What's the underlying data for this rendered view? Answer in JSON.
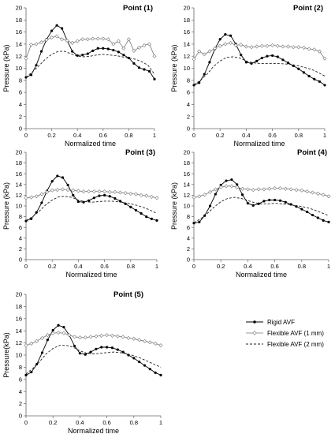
{
  "chart_data": [
    {
      "type": "line",
      "title": "Point (1)",
      "xlabel": "Normalized time",
      "ylabel": "Pressure (kPa)",
      "xlim": [
        0,
        1
      ],
      "ylim": [
        0,
        20
      ],
      "xticks": [
        "0",
        "0.2",
        "0.4",
        "0.6",
        "0.8",
        "1"
      ],
      "yticks": [
        "0",
        "2",
        "4",
        "6",
        "8",
        "10",
        "12",
        "14",
        "16",
        "18",
        "20"
      ],
      "grid": false,
      "legend": false,
      "series": [
        {
          "name": "Rigid AVF",
          "marker": "filled-circle",
          "dash": "solid",
          "x": [
            0,
            0.04,
            0.08,
            0.12,
            0.16,
            0.2,
            0.24,
            0.28,
            0.32,
            0.36,
            0.4,
            0.44,
            0.48,
            0.52,
            0.56,
            0.6,
            0.64,
            0.68,
            0.72,
            0.76,
            0.8,
            0.84,
            0.88,
            0.92,
            0.96,
            1
          ],
          "y": [
            8.5,
            8.9,
            10.5,
            12.8,
            14.8,
            16.2,
            17.1,
            16.6,
            14.6,
            12.8,
            12.1,
            12.2,
            12.4,
            12.9,
            13.3,
            13.3,
            13.2,
            13.0,
            12.7,
            12.2,
            11.7,
            10.8,
            10.1,
            9.8,
            9.5,
            8.2
          ]
        },
        {
          "name": "Flexible AVF (1 mm)",
          "marker": "open-diamond",
          "dash": "solid",
          "x": [
            0,
            0.04,
            0.08,
            0.12,
            0.16,
            0.2,
            0.24,
            0.28,
            0.32,
            0.36,
            0.4,
            0.44,
            0.48,
            0.52,
            0.56,
            0.6,
            0.64,
            0.68,
            0.72,
            0.76,
            0.8,
            0.84,
            0.88,
            0.92,
            0.96,
            1
          ],
          "y": [
            11.6,
            13.9,
            14.0,
            14.3,
            14.7,
            15.1,
            15.3,
            14.8,
            14.6,
            14.2,
            14.5,
            14.8,
            14.8,
            14.9,
            14.9,
            14.9,
            14.8,
            14.0,
            14.5,
            13.3,
            14.8,
            12.9,
            13.4,
            13.8,
            14.0,
            12.0
          ]
        },
        {
          "name": "Flexible AVF (2 mm)",
          "marker": "none",
          "dash": "dashed",
          "x": [
            0,
            0.05,
            0.1,
            0.15,
            0.2,
            0.25,
            0.3,
            0.35,
            0.4,
            0.45,
            0.5,
            0.55,
            0.6,
            0.65,
            0.7,
            0.75,
            0.8,
            0.85,
            0.9,
            0.95,
            1
          ],
          "y": [
            8.5,
            9.4,
            10.4,
            11.5,
            12.3,
            12.8,
            12.8,
            12.4,
            12.0,
            11.9,
            12.0,
            12.2,
            12.3,
            12.2,
            12.1,
            11.9,
            11.7,
            11.5,
            11.1,
            10.5,
            9.0
          ]
        }
      ]
    },
    {
      "type": "line",
      "title": "Point (2)",
      "xlabel": "Normalized time",
      "ylabel": "Pressure (kPa)",
      "xlim": [
        0,
        1
      ],
      "ylim": [
        0,
        20
      ],
      "xticks": [
        "0",
        "0.2",
        "0.4",
        "0.6",
        "0.8",
        "1"
      ],
      "yticks": [
        "0",
        "2",
        "4",
        "6",
        "8",
        "10",
        "12",
        "14",
        "16",
        "18",
        "20"
      ],
      "grid": false,
      "legend": false,
      "series": [
        {
          "name": "Rigid AVF",
          "marker": "filled-circle",
          "dash": "solid",
          "x": [
            0,
            0.04,
            0.08,
            0.12,
            0.16,
            0.2,
            0.24,
            0.28,
            0.32,
            0.36,
            0.4,
            0.44,
            0.48,
            0.52,
            0.56,
            0.6,
            0.64,
            0.68,
            0.72,
            0.76,
            0.8,
            0.84,
            0.88,
            0.92,
            0.96,
            1
          ],
          "y": [
            7.2,
            7.6,
            9.0,
            11.0,
            13.2,
            14.8,
            15.6,
            15.4,
            14.0,
            12.2,
            11.0,
            10.8,
            11.2,
            11.7,
            12.0,
            12.1,
            11.9,
            11.4,
            10.9,
            10.4,
            9.9,
            9.3,
            8.7,
            8.2,
            7.8,
            7.2
          ]
        },
        {
          "name": "Flexible AVF (1 mm)",
          "marker": "open-diamond",
          "dash": "solid",
          "x": [
            0,
            0.04,
            0.08,
            0.12,
            0.16,
            0.2,
            0.24,
            0.28,
            0.32,
            0.36,
            0.4,
            0.44,
            0.48,
            0.52,
            0.56,
            0.6,
            0.64,
            0.68,
            0.72,
            0.76,
            0.8,
            0.84,
            0.88,
            0.92,
            0.96,
            1
          ],
          "y": [
            11.5,
            12.8,
            12.3,
            12.8,
            13.3,
            13.7,
            14.0,
            14.2,
            13.8,
            13.9,
            13.6,
            13.5,
            13.6,
            13.7,
            13.7,
            13.8,
            13.7,
            13.6,
            13.6,
            13.5,
            13.5,
            13.4,
            13.2,
            13.1,
            12.8,
            11.6
          ]
        },
        {
          "name": "Flexible AVF (2 mm)",
          "marker": "none",
          "dash": "dashed",
          "x": [
            0,
            0.05,
            0.1,
            0.15,
            0.2,
            0.25,
            0.3,
            0.35,
            0.4,
            0.45,
            0.5,
            0.55,
            0.6,
            0.65,
            0.7,
            0.75,
            0.8,
            0.85,
            0.9,
            0.95,
            1
          ],
          "y": [
            7.3,
            8.0,
            9.0,
            10.3,
            11.2,
            11.8,
            11.9,
            11.7,
            11.2,
            10.9,
            10.8,
            10.8,
            10.8,
            10.8,
            10.7,
            10.6,
            10.4,
            10.1,
            9.8,
            9.3,
            8.7
          ]
        }
      ]
    },
    {
      "type": "line",
      "title": "Point (3)",
      "xlabel": "Normalized time",
      "ylabel": "Pressure (kPa)",
      "xlim": [
        0,
        1
      ],
      "ylim": [
        0,
        20
      ],
      "xticks": [
        "0",
        "0.2",
        "0.4",
        "0.6",
        "0.8",
        "1"
      ],
      "yticks": [
        "0",
        "2",
        "4",
        "6",
        "8",
        "10",
        "12",
        "14",
        "16",
        "18",
        "20"
      ],
      "grid": false,
      "legend": false,
      "series": [
        {
          "name": "Rigid AVF",
          "marker": "filled-circle",
          "dash": "solid",
          "x": [
            0,
            0.04,
            0.08,
            0.12,
            0.16,
            0.2,
            0.24,
            0.28,
            0.32,
            0.36,
            0.4,
            0.44,
            0.48,
            0.52,
            0.56,
            0.6,
            0.64,
            0.68,
            0.72,
            0.76,
            0.8,
            0.84,
            0.88,
            0.92,
            0.96,
            1
          ],
          "y": [
            7.2,
            7.6,
            8.8,
            10.6,
            12.8,
            14.6,
            15.6,
            15.3,
            13.9,
            12.0,
            10.8,
            10.7,
            11.0,
            11.5,
            11.9,
            12.0,
            11.8,
            11.4,
            10.9,
            10.4,
            9.8,
            9.2,
            8.6,
            8.0,
            7.6,
            7.3
          ]
        },
        {
          "name": "Flexible AVF (1 mm)",
          "marker": "open-diamond",
          "dash": "solid",
          "x": [
            0,
            0.04,
            0.08,
            0.12,
            0.16,
            0.2,
            0.24,
            0.28,
            0.32,
            0.36,
            0.4,
            0.44,
            0.48,
            0.52,
            0.56,
            0.6,
            0.64,
            0.68,
            0.72,
            0.76,
            0.8,
            0.84,
            0.88,
            0.92,
            0.96,
            1
          ],
          "y": [
            11.5,
            11.6,
            11.8,
            12.2,
            12.6,
            12.9,
            13.0,
            13.1,
            13.0,
            12.9,
            12.8,
            12.7,
            12.7,
            12.7,
            12.7,
            12.7,
            12.6,
            12.6,
            12.5,
            12.4,
            12.3,
            12.2,
            12.0,
            11.9,
            11.7,
            11.5
          ]
        },
        {
          "name": "Flexible AVF (2 mm)",
          "marker": "none",
          "dash": "dashed",
          "x": [
            0,
            0.05,
            0.1,
            0.15,
            0.2,
            0.25,
            0.3,
            0.35,
            0.4,
            0.45,
            0.5,
            0.55,
            0.6,
            0.65,
            0.7,
            0.75,
            0.8,
            0.85,
            0.9,
            0.95,
            1
          ],
          "y": [
            7.3,
            8.0,
            9.0,
            10.2,
            11.1,
            11.7,
            11.8,
            11.6,
            11.1,
            10.8,
            10.7,
            10.8,
            10.9,
            10.9,
            10.8,
            10.6,
            10.4,
            10.1,
            9.7,
            9.2,
            8.6
          ]
        }
      ]
    },
    {
      "type": "line",
      "title": "Point (4)",
      "xlabel": "Normalized time",
      "ylabel": "Pressure (kPa)",
      "xlim": [
        0,
        1
      ],
      "ylim": [
        0,
        20
      ],
      "xticks": [
        "0",
        "0.2",
        "0.4",
        "0.6",
        "0.8",
        "1"
      ],
      "yticks": [
        "0",
        "2",
        "4",
        "6",
        "8",
        "10",
        "12",
        "14",
        "16",
        "18",
        "20"
      ],
      "grid": false,
      "legend": false,
      "series": [
        {
          "name": "Rigid AVF",
          "marker": "filled-circle",
          "dash": "solid",
          "x": [
            0,
            0.04,
            0.08,
            0.12,
            0.16,
            0.2,
            0.24,
            0.28,
            0.32,
            0.36,
            0.4,
            0.44,
            0.48,
            0.52,
            0.56,
            0.6,
            0.64,
            0.68,
            0.72,
            0.76,
            0.8,
            0.84,
            0.88,
            0.92,
            0.96,
            1
          ],
          "y": [
            6.8,
            7.0,
            8.2,
            10.0,
            12.2,
            13.9,
            14.7,
            14.9,
            14.0,
            12.1,
            10.5,
            10.1,
            10.4,
            10.9,
            11.1,
            11.1,
            11.0,
            10.7,
            10.3,
            9.9,
            9.4,
            8.9,
            8.3,
            7.8,
            7.3,
            7.0
          ]
        },
        {
          "name": "Flexible AVF (1 mm)",
          "marker": "open-diamond",
          "dash": "solid",
          "x": [
            0,
            0.04,
            0.08,
            0.12,
            0.16,
            0.2,
            0.24,
            0.28,
            0.32,
            0.36,
            0.4,
            0.44,
            0.48,
            0.52,
            0.56,
            0.6,
            0.64,
            0.68,
            0.72,
            0.76,
            0.8,
            0.84,
            0.88,
            0.92,
            0.96,
            1
          ],
          "y": [
            11.6,
            11.8,
            12.1,
            12.6,
            13.1,
            13.5,
            13.7,
            13.7,
            13.5,
            13.2,
            13.1,
            13.0,
            13.1,
            13.1,
            13.2,
            13.3,
            13.3,
            13.2,
            13.1,
            13.0,
            12.9,
            12.7,
            12.5,
            12.3,
            12.1,
            11.8
          ]
        },
        {
          "name": "Flexible AVF (2 mm)",
          "marker": "none",
          "dash": "dashed",
          "x": [
            0,
            0.05,
            0.1,
            0.15,
            0.2,
            0.25,
            0.3,
            0.35,
            0.4,
            0.45,
            0.5,
            0.55,
            0.6,
            0.65,
            0.7,
            0.75,
            0.8,
            0.85,
            0.9,
            0.95,
            1
          ],
          "y": [
            6.9,
            7.6,
            8.6,
            9.8,
            10.8,
            11.4,
            11.6,
            11.4,
            11.0,
            10.6,
            10.4,
            10.4,
            10.5,
            10.4,
            10.3,
            10.1,
            9.9,
            9.6,
            9.2,
            8.7,
            8.2
          ]
        }
      ]
    },
    {
      "type": "line",
      "title": "Point (5)",
      "xlabel": "Normalized time",
      "ylabel": "Pressure(kPa)",
      "xlim": [
        0,
        1
      ],
      "ylim": [
        0,
        20
      ],
      "xticks": [
        "0",
        "0.2",
        "0.4",
        "0.6",
        "0.8",
        "1"
      ],
      "yticks": [
        "0",
        "2",
        "4",
        "6",
        "8",
        "10",
        "12",
        "14",
        "16",
        "18",
        "20"
      ],
      "grid": false,
      "legend": true,
      "legend_position": "right",
      "series": [
        {
          "name": "Rigid AVF",
          "marker": "filled-circle",
          "dash": "solid",
          "x": [
            0,
            0.04,
            0.08,
            0.12,
            0.16,
            0.2,
            0.24,
            0.28,
            0.32,
            0.36,
            0.4,
            0.44,
            0.48,
            0.52,
            0.56,
            0.6,
            0.64,
            0.68,
            0.72,
            0.76,
            0.8,
            0.84,
            0.88,
            0.92,
            0.96,
            1
          ],
          "y": [
            6.7,
            7.2,
            8.5,
            10.4,
            12.5,
            14.1,
            14.9,
            14.6,
            13.3,
            11.5,
            10.3,
            10.1,
            10.5,
            11.0,
            11.3,
            11.3,
            11.2,
            10.9,
            10.5,
            10.0,
            9.5,
            8.9,
            8.3,
            7.7,
            7.1,
            6.7
          ]
        },
        {
          "name": "Flexible AVF (1 mm)",
          "marker": "open-diamond",
          "dash": "solid",
          "x": [
            0,
            0.04,
            0.08,
            0.12,
            0.16,
            0.2,
            0.24,
            0.28,
            0.32,
            0.36,
            0.4,
            0.44,
            0.48,
            0.52,
            0.56,
            0.6,
            0.64,
            0.68,
            0.72,
            0.76,
            0.8,
            0.84,
            0.88,
            0.92,
            0.96,
            1
          ],
          "y": [
            11.6,
            11.9,
            12.3,
            12.8,
            13.3,
            13.6,
            13.7,
            13.6,
            13.3,
            13.0,
            12.9,
            12.9,
            13.0,
            13.1,
            13.2,
            13.3,
            13.2,
            13.1,
            13.0,
            12.8,
            12.7,
            12.5,
            12.3,
            12.1,
            11.9,
            11.6
          ]
        },
        {
          "name": "Flexible AVF (2 mm)",
          "marker": "none",
          "dash": "dashed",
          "x": [
            0,
            0.05,
            0.1,
            0.15,
            0.2,
            0.25,
            0.3,
            0.35,
            0.4,
            0.45,
            0.5,
            0.55,
            0.6,
            0.65,
            0.7,
            0.75,
            0.8,
            0.85,
            0.9,
            0.95,
            1
          ],
          "y": [
            6.9,
            7.8,
            8.9,
            10.2,
            11.1,
            11.6,
            11.6,
            11.3,
            10.7,
            10.3,
            10.2,
            10.3,
            10.4,
            10.5,
            10.4,
            10.2,
            9.9,
            9.5,
            9.0,
            8.5,
            8.0
          ]
        }
      ]
    }
  ]
}
